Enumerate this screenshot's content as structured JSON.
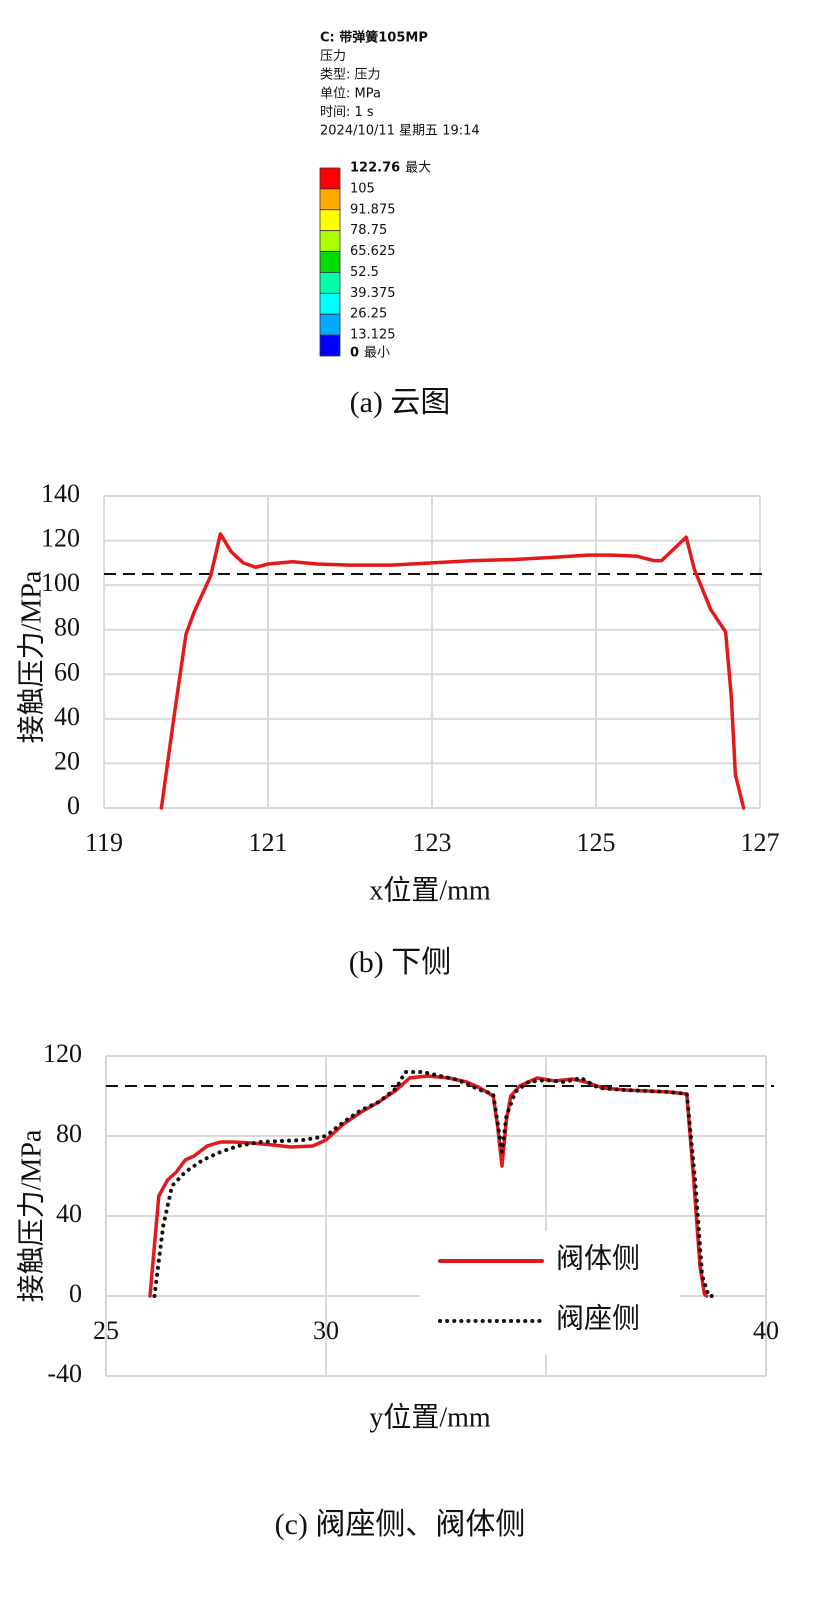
{
  "chart_data": [
    {
      "type": "colorbar",
      "header": [
        "C: 带弹簧105MP",
        "压力",
        "类型: 压力",
        "单位: MPa",
        "时间: 1 s",
        "2024/10/11 星期五 19:14"
      ],
      "levels": [
        122.76,
        105,
        91.875,
        78.75,
        65.625,
        52.5,
        39.375,
        26.25,
        13.125,
        0
      ],
      "colors": [
        "#ff0000",
        "#ffaa00",
        "#ffff00",
        "#aaff00",
        "#00dd00",
        "#00ffaa",
        "#00ffff",
        "#00aaff",
        "#0000ff"
      ],
      "max_label": "最大",
      "min_label": "最小",
      "caption": "(a) 云图"
    },
    {
      "type": "line",
      "xlabel": "x位置/mm",
      "ylabel": "接触压力/MPa",
      "xlim": [
        119,
        127
      ],
      "xticks": [
        119,
        121,
        123,
        125,
        127
      ],
      "ylim": [
        0,
        140
      ],
      "yticks": [
        0,
        20,
        40,
        60,
        80,
        100,
        120,
        140
      ],
      "grid": true,
      "ref_line": 105,
      "color": "#e31a1c",
      "x": [
        119.7,
        119.85,
        120.0,
        120.1,
        120.3,
        120.42,
        120.55,
        120.7,
        120.85,
        121.0,
        121.3,
        121.6,
        122.0,
        122.5,
        123.0,
        123.5,
        124.0,
        124.5,
        124.9,
        125.2,
        125.5,
        125.7,
        125.8,
        126.0,
        126.1,
        126.2,
        126.4,
        126.58,
        126.65,
        126.7,
        126.8
      ],
      "values": [
        0,
        40,
        78,
        88,
        104,
        123,
        115,
        110,
        108,
        109.5,
        110.5,
        109.5,
        109,
        109,
        110,
        111,
        111.5,
        112.5,
        113.5,
        113.5,
        113,
        111,
        111,
        118,
        121.5,
        107,
        89,
        79,
        50,
        15,
        0
      ],
      "caption": "(b) 下侧"
    },
    {
      "type": "line",
      "xlabel": "y位置/mm",
      "ylabel": "接触压力/MPa",
      "xlim": [
        25,
        40
      ],
      "xticks": [
        25,
        30,
        35,
        40
      ],
      "ylim": [
        -40,
        120
      ],
      "yticks": [
        -40,
        0,
        40,
        80,
        120
      ],
      "grid": true,
      "ref_line": 105,
      "legend": "lower-right",
      "series": [
        {
          "name": "阀体侧",
          "color": "#e31a1c",
          "style": "solid",
          "x": [
            26.0,
            26.2,
            26.4,
            26.6,
            26.8,
            27.0,
            27.3,
            27.6,
            27.9,
            28.3,
            28.8,
            29.2,
            29.7,
            30.0,
            30.4,
            30.8,
            31.2,
            31.6,
            31.9,
            32.3,
            32.8,
            33.2,
            33.5,
            33.8,
            33.9,
            34.0,
            34.1,
            34.2,
            34.4,
            34.8,
            35.2,
            35.6,
            35.9,
            36.3,
            36.8,
            37.3,
            37.8,
            38.2,
            38.35,
            38.5,
            38.6,
            38.65
          ],
          "values": [
            0,
            50,
            58,
            62,
            68,
            70,
            75,
            77,
            77,
            76.5,
            75.5,
            74.5,
            75,
            78,
            86,
            92,
            97,
            103,
            109,
            110,
            109,
            107,
            104,
            100,
            85,
            65,
            88,
            100,
            105,
            109,
            107.5,
            108.5,
            107,
            104,
            103,
            102.5,
            102,
            101,
            60,
            15,
            1,
            0
          ]
        },
        {
          "name": "阀座侧",
          "color": "#111111",
          "style": "dotted",
          "x": [
            26.1,
            26.3,
            26.5,
            26.8,
            27.2,
            27.6,
            28.0,
            28.5,
            29.0,
            29.5,
            30.0,
            30.4,
            30.8,
            31.2,
            31.6,
            31.8,
            32.2,
            32.6,
            33.0,
            33.5,
            33.8,
            34.0,
            34.1,
            34.3,
            34.6,
            35.0,
            35.4,
            35.8,
            36.2,
            36.8,
            37.3,
            37.8,
            38.2,
            38.4,
            38.55,
            38.7,
            38.85
          ],
          "values": [
            0,
            35,
            55,
            62,
            68,
            72,
            75,
            77,
            77.5,
            78,
            80,
            87,
            93,
            97,
            104,
            112,
            112,
            110,
            108,
            103,
            101,
            72,
            90,
            102,
            107,
            108,
            107,
            109,
            104,
            103,
            102.5,
            102,
            101,
            55,
            10,
            0,
            0
          ]
        }
      ],
      "caption": "(c) 阀座侧、阀体侧"
    }
  ]
}
